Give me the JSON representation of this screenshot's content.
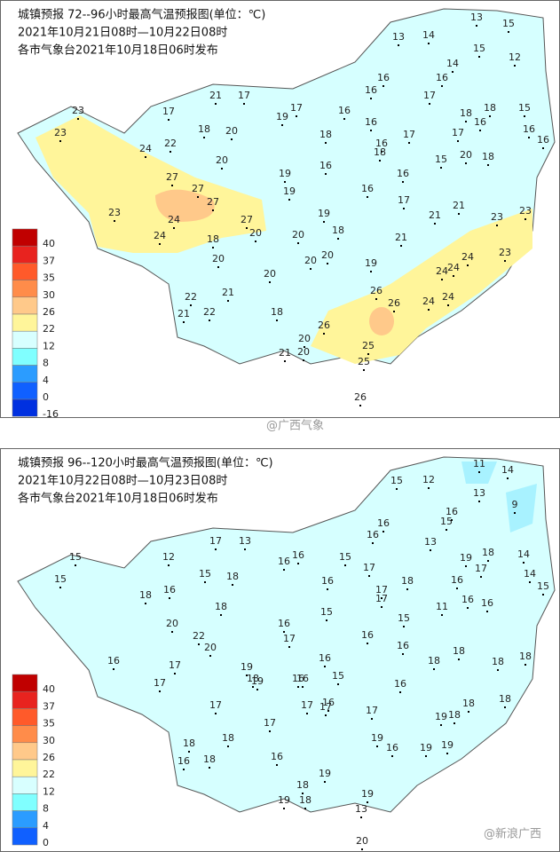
{
  "maps": [
    {
      "title": [
        "城镇预报 72--96小时最高气温预报图(单位：℃)",
        "2021年10月21日08时—10月22日08时",
        "各市气象台2021年10月18日06时发布"
      ],
      "legend": [
        "40",
        "37",
        "35",
        "30",
        "26",
        "22",
        "12",
        "8",
        "4",
        "0",
        "-16"
      ],
      "stations": [
        15,
        13,
        14,
        13,
        15,
        12,
        14,
        16,
        16,
        16,
        17,
        21,
        17,
        17,
        17,
        19,
        16,
        23,
        16,
        18,
        18,
        15,
        16,
        23,
        18,
        20,
        18,
        17,
        16,
        16,
        22,
        16,
        17,
        24,
        18,
        20,
        18,
        15,
        20,
        16,
        19,
        16,
        27,
        19,
        16,
        27,
        27,
        17,
        21,
        21,
        23,
        24,
        19,
        27,
        23,
        23,
        18,
        20,
        20,
        24,
        18,
        21,
        23,
        20,
        20,
        20,
        19,
        24,
        24,
        20,
        21,
        24,
        22,
        26,
        26,
        18,
        24,
        24,
        21,
        22,
        26,
        20,
        25,
        21,
        20,
        25,
        26
      ],
      "watermark": "@广西气象"
    },
    {
      "title": [
        "城镇预报 96--120小时最高气温预报图(单位：℃)",
        "2021年10月22日08时—10月23日08时",
        "各市气象台2021年10月18日06时发布"
      ],
      "legend": [
        "40",
        "37",
        "35",
        "30",
        "26",
        "22",
        "12",
        "8",
        "4",
        "0"
      ],
      "stations": [
        11,
        14,
        12,
        15,
        13,
        9,
        16,
        16,
        15,
        16,
        18,
        14,
        15,
        12,
        17,
        13,
        16,
        16,
        15,
        17,
        13,
        19,
        17,
        16,
        15,
        15,
        18,
        16,
        18,
        17,
        14,
        15,
        18,
        16,
        18,
        17,
        11,
        16,
        16,
        15,
        15,
        20,
        16,
        17,
        16,
        22,
        20,
        16,
        18,
        18,
        16,
        17,
        16,
        19,
        19,
        18,
        15,
        16,
        18,
        18,
        17,
        16,
        18,
        17,
        17,
        16,
        17,
        17,
        16,
        18,
        19,
        18,
        17,
        18,
        18,
        19,
        16,
        19,
        19,
        16,
        18,
        16,
        19,
        18,
        19,
        19,
        18,
        13,
        20
      ],
      "watermark": "@新浪广西"
    }
  ]
}
